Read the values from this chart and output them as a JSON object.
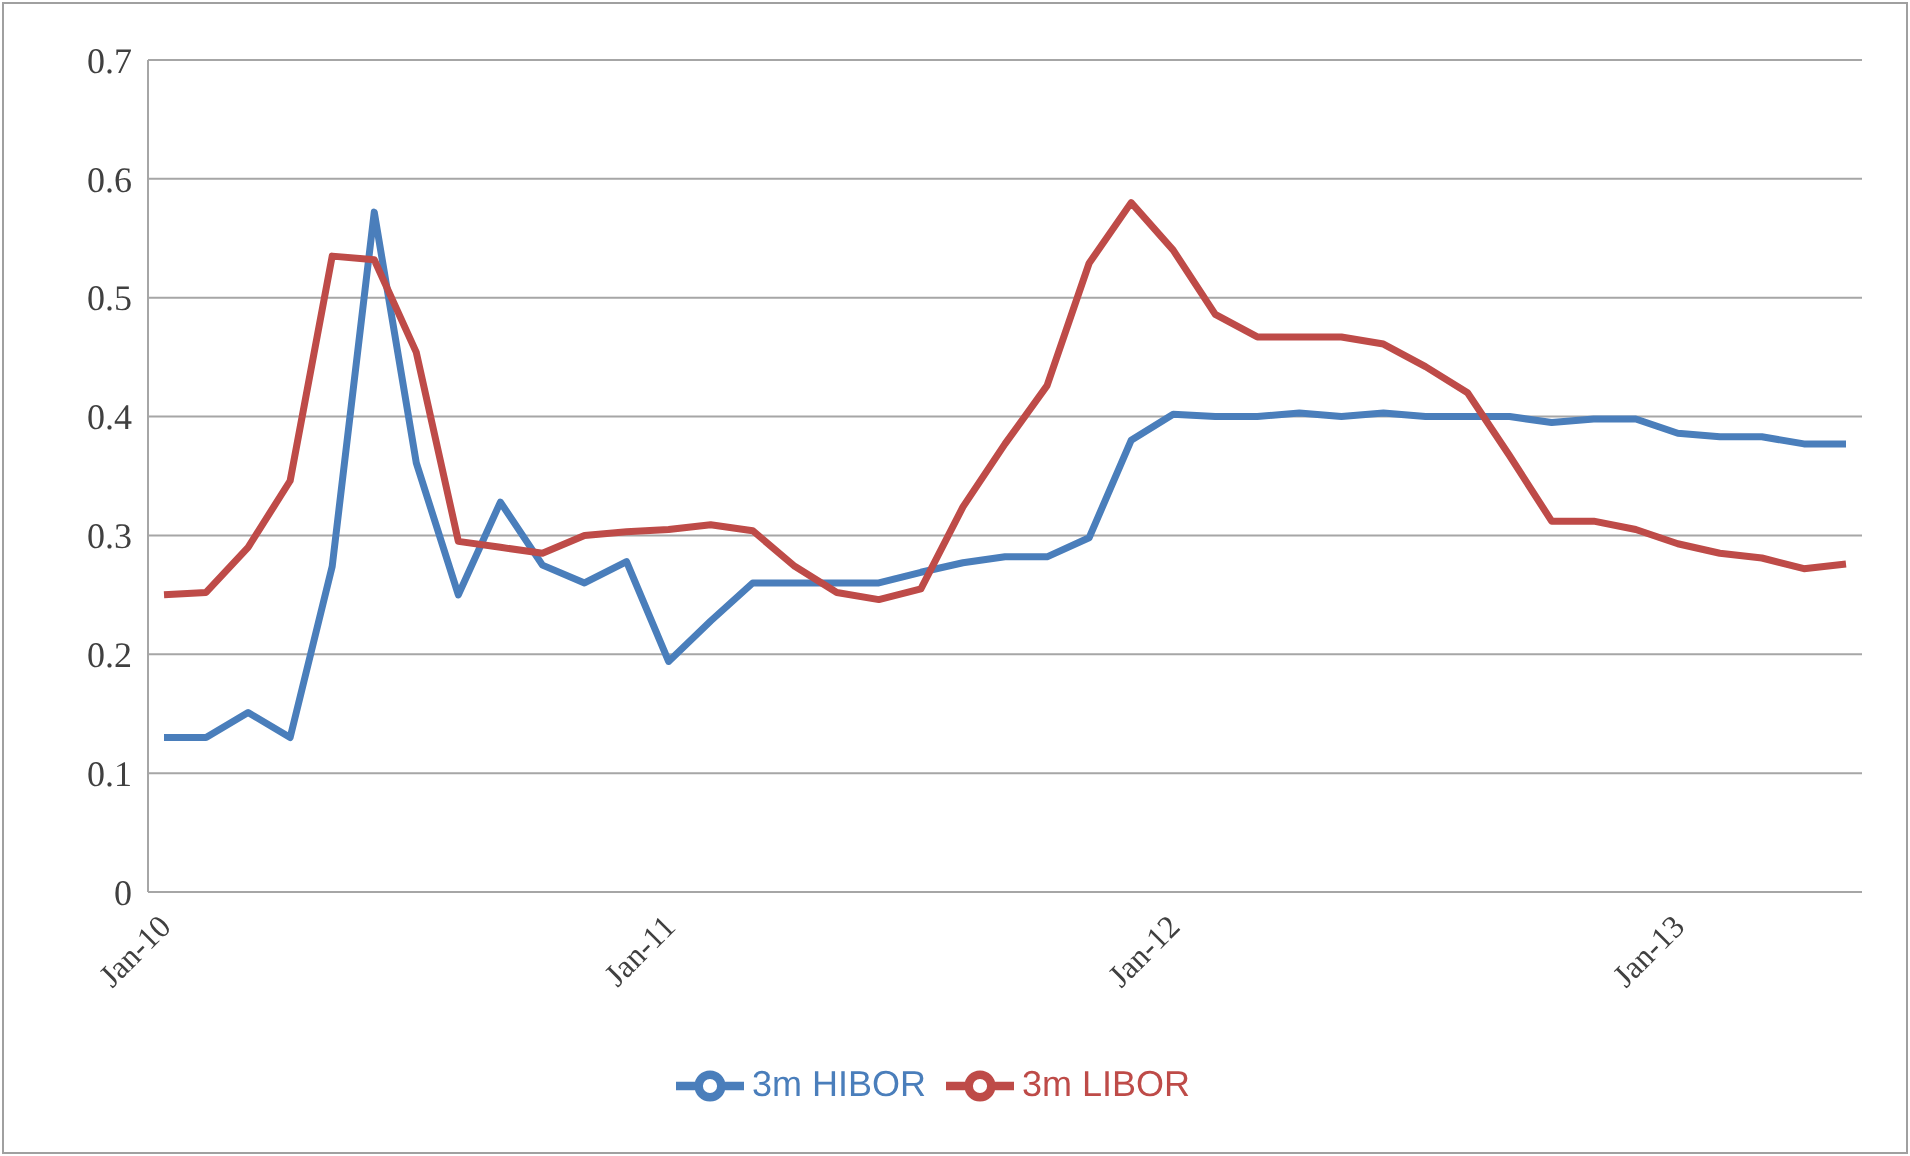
{
  "chart_data": {
    "type": "line",
    "categories": [
      "Jan-10",
      null,
      null,
      null,
      null,
      null,
      null,
      null,
      null,
      null,
      null,
      null,
      "Jan-11",
      null,
      null,
      null,
      null,
      null,
      null,
      null,
      null,
      null,
      null,
      null,
      "Jan-12",
      null,
      null,
      null,
      null,
      null,
      null,
      null,
      null,
      null,
      null,
      null,
      "Jan-13",
      null,
      null,
      null,
      null
    ],
    "series": [
      {
        "name": "3m HIBOR",
        "color": "#4a7ebb",
        "values": [
          0.13,
          0.13,
          0.151,
          0.13,
          0.274,
          0.572,
          0.361,
          0.25,
          0.328,
          0.275,
          0.26,
          0.278,
          0.194,
          0.228,
          0.26,
          0.26,
          0.26,
          0.26,
          0.269,
          0.277,
          0.282,
          0.282,
          0.298,
          0.38,
          0.402,
          0.4,
          0.4,
          0.403,
          0.4,
          0.403,
          0.4,
          0.4,
          0.4,
          0.395,
          0.398,
          0.398,
          0.386,
          0.383,
          0.383,
          0.377,
          0.377
        ]
      },
      {
        "name": "3m LIBOR",
        "color": "#be4b48",
        "values": [
          0.25,
          0.252,
          0.29,
          0.346,
          0.535,
          0.532,
          0.454,
          0.295,
          0.29,
          0.285,
          0.3,
          0.303,
          0.305,
          0.309,
          0.304,
          0.274,
          0.252,
          0.246,
          0.255,
          0.324,
          0.377,
          0.426,
          0.529,
          0.58,
          0.54,
          0.486,
          0.467,
          0.467,
          0.467,
          0.461,
          0.442,
          0.42,
          0.367,
          0.312,
          0.312,
          0.305,
          0.293,
          0.285,
          0.281,
          0.272,
          0.276
        ]
      }
    ],
    "ylim": [
      0,
      0.7
    ],
    "yticks": [
      0,
      0.1,
      0.2,
      0.3,
      0.4,
      0.5,
      0.6,
      0.7
    ],
    "grid": "y",
    "legend": "bottom",
    "marker": "none",
    "line_style": "solid"
  }
}
